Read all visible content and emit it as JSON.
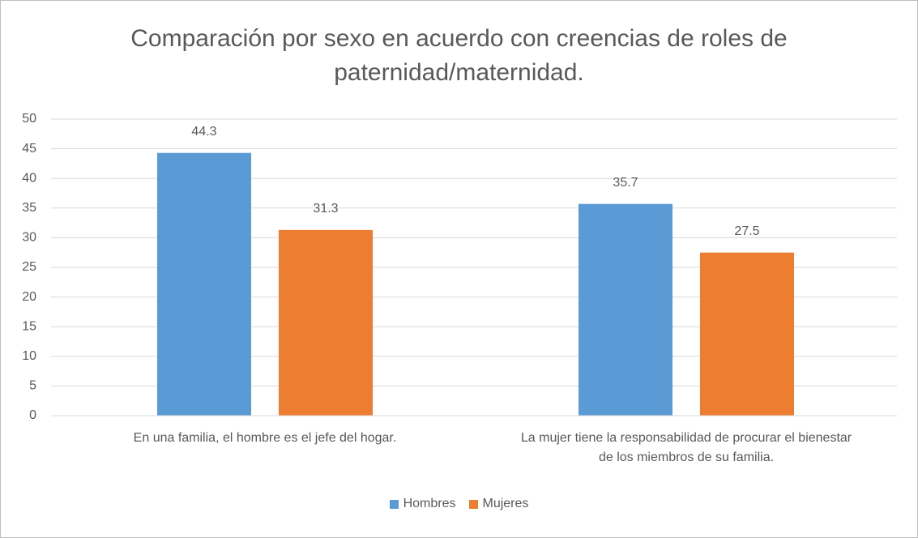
{
  "chart_data": {
    "type": "bar",
    "title": "Comparación por sexo en acuerdo con creencias de roles de paternidad/maternidad.",
    "categories": [
      "En una familia, el hombre es el jefe del hogar.",
      "La mujer tiene la responsabilidad de procurar el bienestar de los miembros de su familia."
    ],
    "series": [
      {
        "name": "Hombres",
        "color": "#5b9bd5",
        "values": [
          44.3,
          35.7
        ]
      },
      {
        "name": "Mujeres",
        "color": "#ed7d31",
        "values": [
          31.3,
          27.5
        ]
      }
    ],
    "ylim": [
      0,
      50
    ],
    "yticks": [
      0,
      5,
      10,
      15,
      20,
      25,
      30,
      35,
      40,
      45,
      50
    ],
    "grid": true,
    "legend": "bottom"
  }
}
